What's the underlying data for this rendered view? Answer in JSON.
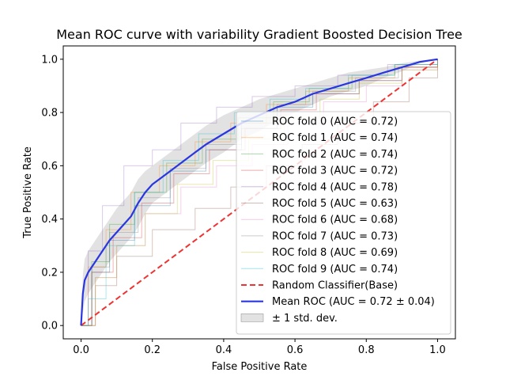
{
  "chart_data": {
    "type": "line",
    "title": "Mean ROC curve with variability Gradient Boosted Decision Tree",
    "xlabel": "False Positive Rate",
    "ylabel": "True Positive Rate",
    "xlim": [
      -0.05,
      1.05
    ],
    "ylim": [
      -0.05,
      1.05
    ],
    "xticks": [
      0.0,
      0.2,
      0.4,
      0.6,
      0.8,
      1.0
    ],
    "xtick_labels": [
      "0.0",
      "0.2",
      "0.4",
      "0.6",
      "0.8",
      "1.0"
    ],
    "yticks": [
      0.0,
      0.2,
      0.4,
      0.6,
      0.8,
      1.0
    ],
    "ytick_labels": [
      "0.0",
      "0.2",
      "0.4",
      "0.6",
      "0.8",
      "1.0"
    ],
    "grid": false,
    "legend_position": "lower-right",
    "series": [
      {
        "name": "ROC fold 0 (AUC = 0.72)",
        "color": "#1f77b4",
        "kind": "fold",
        "x": [
          0,
          0.03,
          0.08,
          0.15,
          0.25,
          0.35,
          0.45,
          0.55,
          0.65,
          0.78,
          0.9,
          1.0
        ],
        "y": [
          0,
          0.2,
          0.32,
          0.45,
          0.58,
          0.66,
          0.74,
          0.82,
          0.87,
          0.92,
          0.97,
          1.0
        ]
      },
      {
        "name": "ROC fold 1 (AUC = 0.74)",
        "color": "#ff7f0e",
        "kind": "fold",
        "x": [
          0,
          0.02,
          0.07,
          0.14,
          0.22,
          0.32,
          0.42,
          0.52,
          0.63,
          0.75,
          0.88,
          1.0
        ],
        "y": [
          0,
          0.22,
          0.36,
          0.5,
          0.6,
          0.69,
          0.76,
          0.83,
          0.88,
          0.93,
          0.97,
          1.0
        ]
      },
      {
        "name": "ROC fold 2 (AUC = 0.74)",
        "color": "#2ca02c",
        "kind": "fold",
        "x": [
          0,
          0.03,
          0.08,
          0.15,
          0.24,
          0.34,
          0.44,
          0.54,
          0.64,
          0.76,
          0.88,
          1.0
        ],
        "y": [
          0,
          0.24,
          0.38,
          0.5,
          0.61,
          0.7,
          0.78,
          0.84,
          0.89,
          0.94,
          0.98,
          1.0
        ]
      },
      {
        "name": "ROC fold 3 (AUC = 0.72)",
        "color": "#d62728",
        "kind": "fold",
        "x": [
          0,
          0.03,
          0.09,
          0.17,
          0.26,
          0.36,
          0.46,
          0.56,
          0.66,
          0.78,
          0.9,
          1.0
        ],
        "y": [
          0,
          0.2,
          0.33,
          0.46,
          0.57,
          0.66,
          0.74,
          0.81,
          0.87,
          0.92,
          0.97,
          1.0
        ]
      },
      {
        "name": "ROC fold 4 (AUC = 0.78)",
        "color": "#9467bd",
        "kind": "fold",
        "x": [
          0,
          0.02,
          0.06,
          0.12,
          0.2,
          0.28,
          0.38,
          0.48,
          0.6,
          0.72,
          0.86,
          1.0
        ],
        "y": [
          0,
          0.28,
          0.45,
          0.6,
          0.66,
          0.76,
          0.82,
          0.86,
          0.9,
          0.94,
          0.98,
          1.0
        ]
      },
      {
        "name": "ROC fold 5 (AUC = 0.63)",
        "color": "#8c564b",
        "kind": "fold",
        "x": [
          0,
          0.04,
          0.1,
          0.2,
          0.32,
          0.42,
          0.52,
          0.62,
          0.72,
          0.82,
          0.92,
          1.0
        ],
        "y": [
          0,
          0.15,
          0.26,
          0.36,
          0.44,
          0.52,
          0.6,
          0.68,
          0.76,
          0.84,
          0.93,
          1.0
        ]
      },
      {
        "name": "ROC fold 6 (AUC = 0.68)",
        "color": "#e377c2",
        "kind": "fold",
        "x": [
          0,
          0.04,
          0.1,
          0.18,
          0.28,
          0.38,
          0.48,
          0.58,
          0.68,
          0.8,
          0.9,
          1.0
        ],
        "y": [
          0,
          0.18,
          0.3,
          0.42,
          0.52,
          0.6,
          0.68,
          0.76,
          0.84,
          0.9,
          0.96,
          1.0
        ]
      },
      {
        "name": "ROC fold 7 (AUC = 0.73)",
        "color": "#7f7f7f",
        "kind": "fold",
        "x": [
          0,
          0.03,
          0.08,
          0.16,
          0.25,
          0.35,
          0.45,
          0.55,
          0.65,
          0.77,
          0.89,
          1.0
        ],
        "y": [
          0,
          0.22,
          0.35,
          0.48,
          0.59,
          0.68,
          0.76,
          0.83,
          0.88,
          0.93,
          0.97,
          1.0
        ]
      },
      {
        "name": "ROC fold 8 (AUC = 0.69)",
        "color": "#bcbd22",
        "kind": "fold",
        "x": [
          0,
          0.04,
          0.1,
          0.18,
          0.27,
          0.37,
          0.47,
          0.57,
          0.67,
          0.78,
          0.9,
          1.0
        ],
        "y": [
          0,
          0.18,
          0.3,
          0.42,
          0.53,
          0.62,
          0.7,
          0.78,
          0.85,
          0.91,
          0.96,
          1.0
        ]
      },
      {
        "name": "ROC fold 9 (AUC = 0.74)",
        "color": "#17becf",
        "kind": "fold",
        "x": [
          0,
          0.02,
          0.07,
          0.15,
          0.23,
          0.33,
          0.43,
          0.53,
          0.63,
          0.75,
          0.88,
          1.0
        ],
        "y": [
          0,
          0.1,
          0.3,
          0.5,
          0.62,
          0.72,
          0.8,
          0.85,
          0.89,
          0.94,
          0.98,
          1.0
        ]
      },
      {
        "name": "Random Classifier(Base)",
        "color": "#f03232",
        "kind": "chance",
        "x": [
          0,
          1
        ],
        "y": [
          0,
          1
        ]
      },
      {
        "name": "Mean ROC (AUC = 0.72 ± 0.04)",
        "color": "#2a36e0",
        "kind": "mean",
        "x": [
          0,
          0.005,
          0.01,
          0.02,
          0.04,
          0.06,
          0.08,
          0.1,
          0.12,
          0.14,
          0.16,
          0.18,
          0.2,
          0.22,
          0.25,
          0.28,
          0.3,
          0.32,
          0.35,
          0.4,
          0.45,
          0.5,
          0.55,
          0.6,
          0.65,
          0.7,
          0.75,
          0.8,
          0.85,
          0.9,
          0.95,
          1.0
        ],
        "y": [
          0,
          0.12,
          0.17,
          0.2,
          0.24,
          0.28,
          0.32,
          0.35,
          0.38,
          0.41,
          0.46,
          0.5,
          0.53,
          0.55,
          0.58,
          0.61,
          0.63,
          0.65,
          0.68,
          0.72,
          0.76,
          0.79,
          0.82,
          0.84,
          0.87,
          0.89,
          0.91,
          0.93,
          0.95,
          0.97,
          0.99,
          1.0
        ]
      },
      {
        "name": "± 1 std. dev.",
        "color": "#bfbfbf",
        "kind": "band",
        "x": [
          0,
          0.005,
          0.01,
          0.02,
          0.04,
          0.06,
          0.08,
          0.1,
          0.12,
          0.14,
          0.16,
          0.18,
          0.2,
          0.22,
          0.25,
          0.28,
          0.3,
          0.32,
          0.35,
          0.4,
          0.45,
          0.5,
          0.55,
          0.6,
          0.65,
          0.7,
          0.75,
          0.8,
          0.85,
          0.9,
          0.95,
          1.0
        ],
        "y_upper": [
          0,
          0.19,
          0.25,
          0.28,
          0.32,
          0.36,
          0.4,
          0.44,
          0.47,
          0.5,
          0.55,
          0.58,
          0.6,
          0.62,
          0.65,
          0.68,
          0.7,
          0.72,
          0.75,
          0.79,
          0.82,
          0.85,
          0.87,
          0.89,
          0.91,
          0.93,
          0.95,
          0.96,
          0.97,
          0.985,
          0.995,
          1.0
        ],
        "y_lower": [
          0,
          0.05,
          0.09,
          0.12,
          0.16,
          0.2,
          0.24,
          0.27,
          0.3,
          0.33,
          0.37,
          0.42,
          0.46,
          0.48,
          0.51,
          0.54,
          0.56,
          0.58,
          0.61,
          0.65,
          0.7,
          0.73,
          0.77,
          0.8,
          0.83,
          0.86,
          0.88,
          0.9,
          0.93,
          0.955,
          0.985,
          1.0
        ]
      }
    ]
  }
}
